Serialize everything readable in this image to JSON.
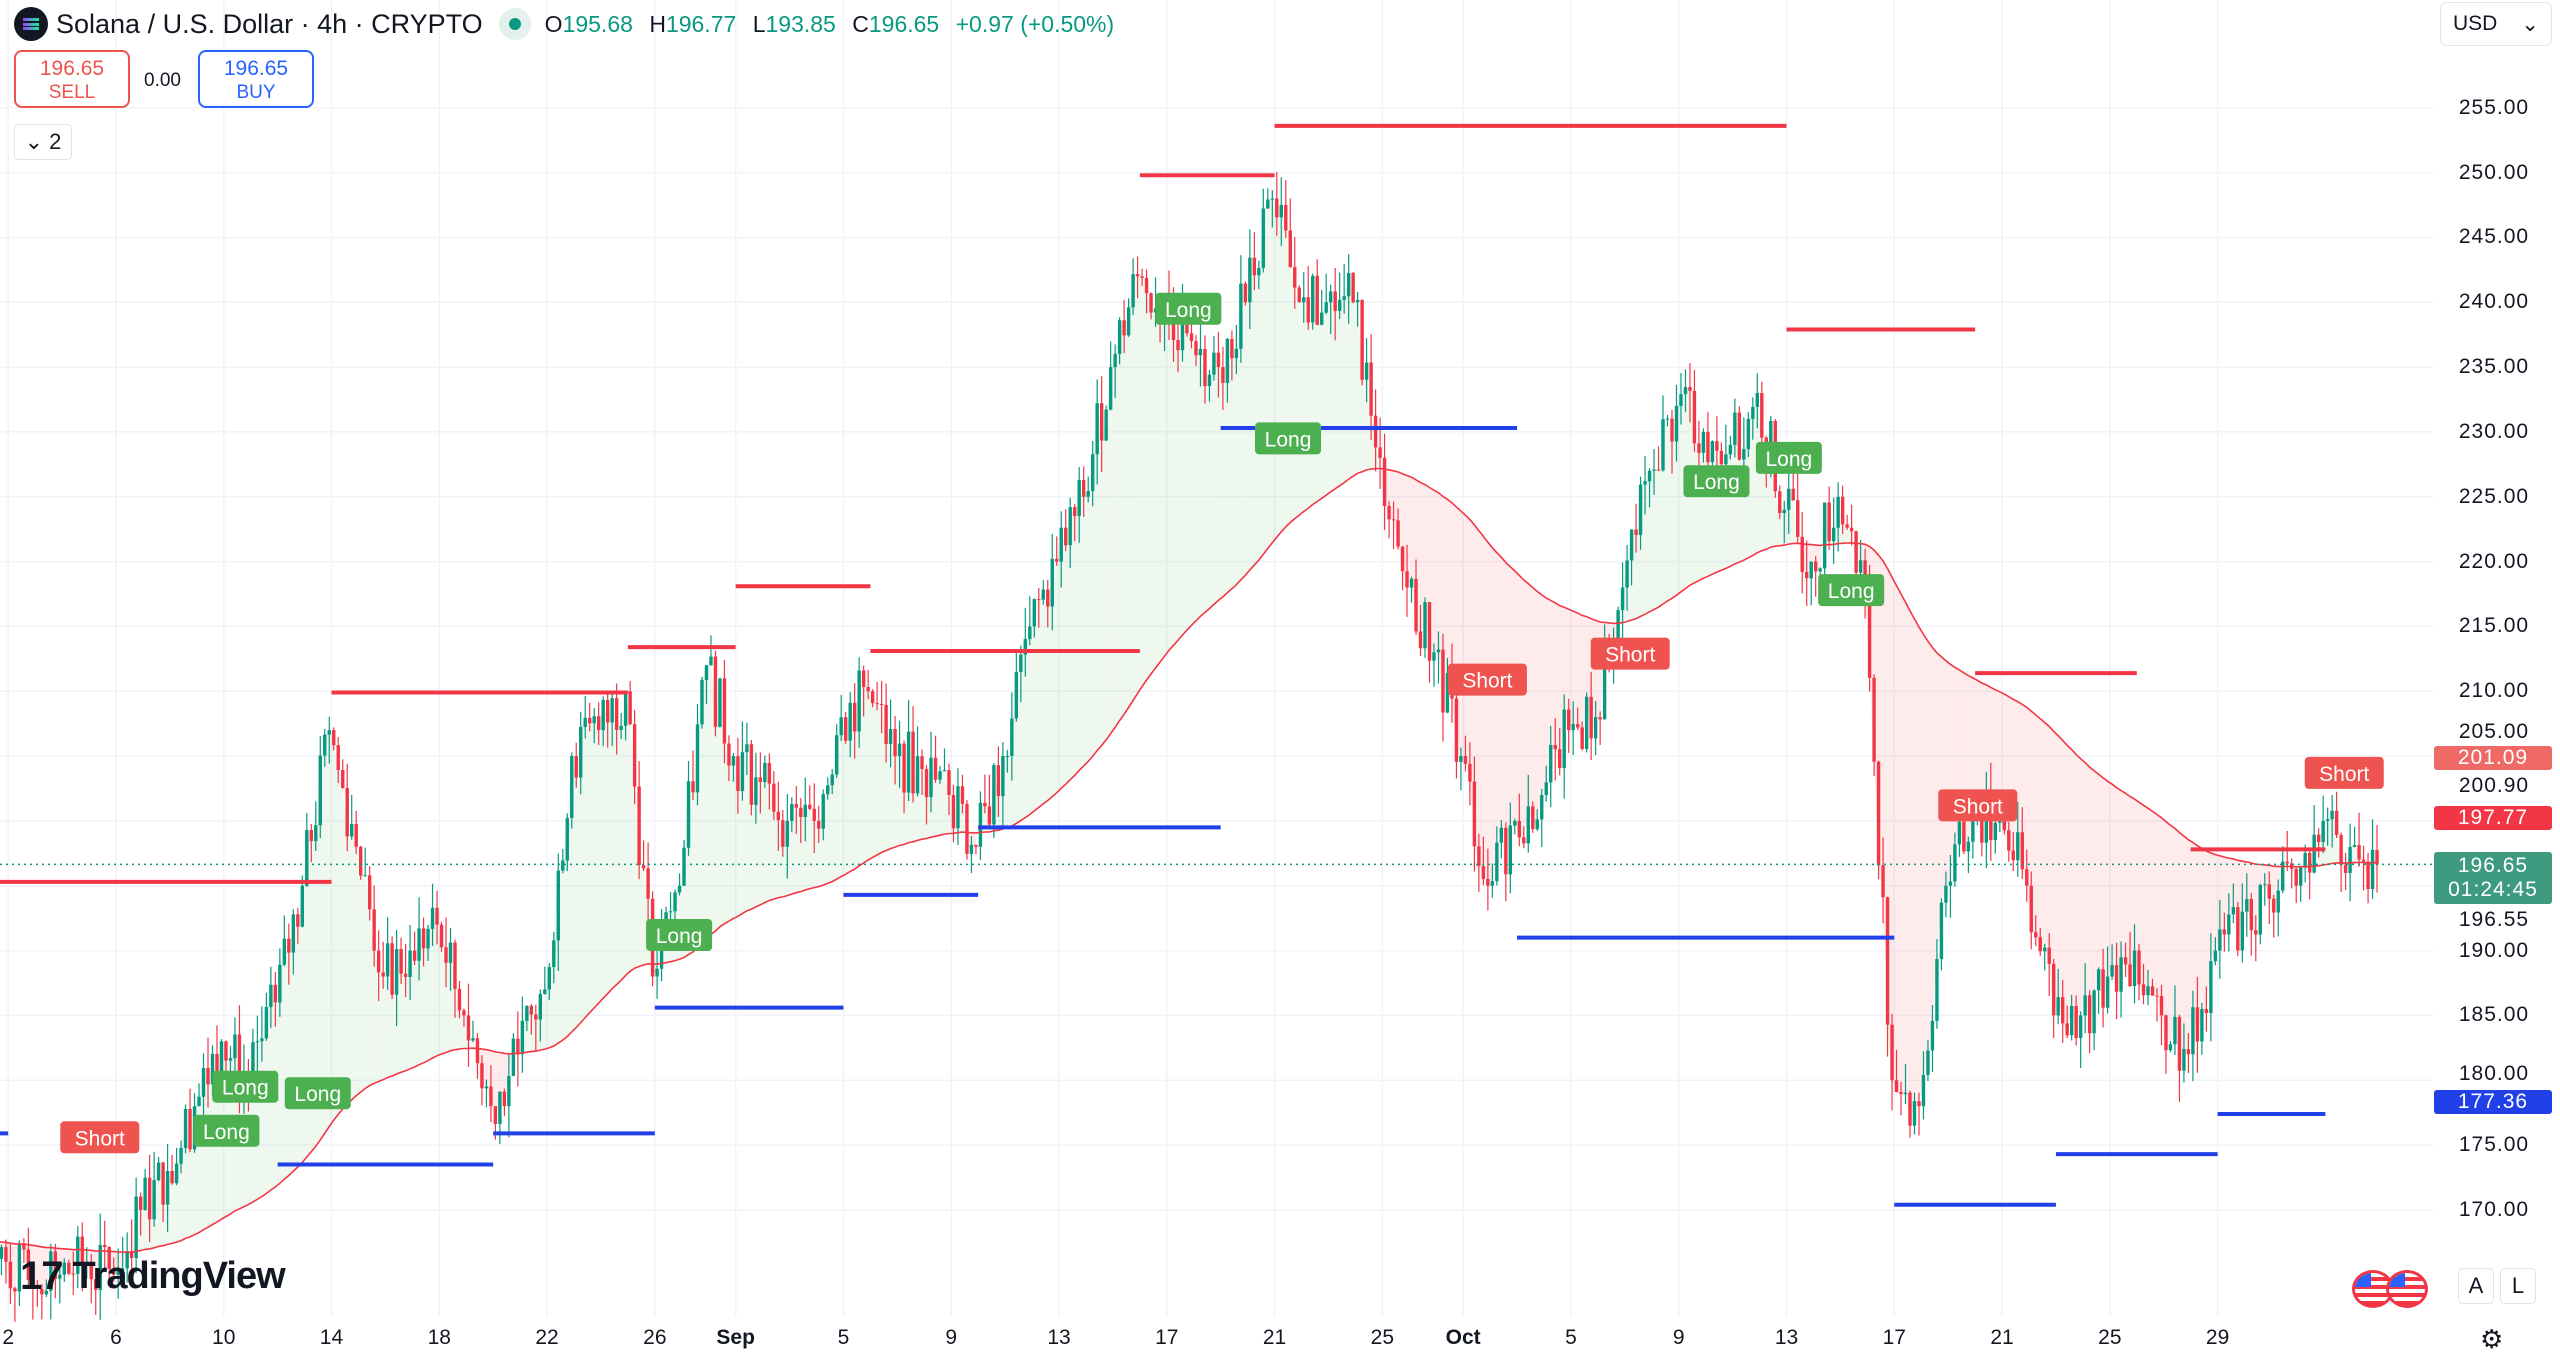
{
  "header": {
    "symbol_title": "Solana / U.S. Dollar · 4h · CRYPTO",
    "ohlc": {
      "o_label": "O",
      "o": "195.68",
      "h_label": "H",
      "h": "196.77",
      "l_label": "L",
      "l": "193.85",
      "c_label": "C",
      "c": "196.65",
      "change": "+0.97 (+0.50%)"
    },
    "status_color": "#089981"
  },
  "trade": {
    "sell_price": "196.65",
    "sell_label": "SELL",
    "spread": "0.00",
    "buy_price": "196.65",
    "buy_label": "BUY"
  },
  "indicators_toggle": {
    "icon": "chevron-down-icon",
    "count": "2"
  },
  "currency_select": {
    "value": "USD"
  },
  "price_axis": {
    "ticks": [
      "255.00",
      "250.00",
      "245.00",
      "240.00",
      "235.00",
      "230.00",
      "225.00",
      "220.00",
      "215.00",
      "210.00",
      "205.00",
      "200.90",
      "196.55",
      "190.00",
      "185.00",
      "180.00",
      "175.00",
      "170.00"
    ],
    "tags": [
      {
        "value": "201.09",
        "color": "#ef6a67"
      },
      {
        "value": "197.77",
        "color": "#f23645"
      },
      {
        "value": "196.65",
        "countdown": "01:24:45",
        "color": "#3f9b80"
      },
      {
        "value": "177.36",
        "color": "#2240e8"
      }
    ]
  },
  "time_axis": [
    "2",
    "6",
    "10",
    "14",
    "18",
    "22",
    "26",
    "Sep",
    "5",
    "9",
    "13",
    "17",
    "21",
    "25",
    "Oct",
    "5",
    "9",
    "13",
    "17",
    "21",
    "25",
    "29"
  ],
  "scale_buttons": {
    "auto": "A",
    "log": "L"
  },
  "branding": {
    "logo_text": "TradingView"
  },
  "colors": {
    "up": "#089981",
    "down": "#f23645",
    "ma": "#f23645",
    "resistance": "#f23645",
    "support": "#2240e8",
    "long_label": "#4caf50",
    "short_label": "#ef5350"
  },
  "chart_data": {
    "type": "candlestick",
    "interval": "4h",
    "start_date": "Aug 1",
    "daily_close": [
      168,
      166,
      164,
      165,
      166,
      165,
      170,
      173,
      178,
      183,
      180,
      186,
      195,
      207,
      198,
      188,
      190,
      192,
      185,
      178,
      182,
      187,
      205,
      207,
      210,
      188,
      195,
      212,
      205,
      203,
      200,
      200,
      208,
      210,
      205,
      204,
      202,
      198,
      205,
      215,
      220,
      225,
      235,
      242,
      240,
      237,
      235,
      240,
      248,
      240,
      240,
      240,
      228,
      218,
      213,
      205,
      195,
      200,
      202,
      207,
      208,
      218,
      227,
      232,
      230,
      229,
      233,
      224,
      220,
      225,
      218,
      180,
      178,
      195,
      200,
      200,
      195,
      185,
      185,
      188,
      190,
      185,
      182,
      190,
      193,
      194,
      195,
      200,
      198,
      196.65
    ],
    "current_price": 196.65,
    "resistance_lines": [
      {
        "price": 195.3,
        "from": "Jul 31",
        "to": "Aug 14"
      },
      {
        "price": 209.9,
        "from": "Aug 14",
        "to": "Aug 25"
      },
      {
        "price": 213.4,
        "from": "Aug 25",
        "to": "Aug 29"
      },
      {
        "price": 218.1,
        "from": "Aug 29",
        "to": "Sep 3"
      },
      {
        "price": 213.1,
        "from": "Sep 3",
        "to": "Sep 13"
      },
      {
        "price": 249.8,
        "from": "Sep 13",
        "to": "Sep 18"
      },
      {
        "price": 253.6,
        "from": "Sep 18",
        "to": "Oct 7"
      },
      {
        "price": 237.9,
        "from": "Oct 7",
        "to": "Oct 14"
      },
      {
        "price": 211.4,
        "from": "Oct 14",
        "to": "Oct 20"
      },
      {
        "price": 197.8,
        "from": "Oct 22",
        "to": "Oct 27"
      }
    ],
    "support_lines": [
      {
        "price": 175.9,
        "from": "Jul 31",
        "to": "Aug 2"
      },
      {
        "price": 173.5,
        "from": "Aug 12",
        "to": "Aug 20"
      },
      {
        "price": 175.9,
        "from": "Aug 20",
        "to": "Aug 26"
      },
      {
        "price": 185.6,
        "from": "Aug 26",
        "to": "Sep 2"
      },
      {
        "price": 194.3,
        "from": "Sep 2",
        "to": "Sep 7"
      },
      {
        "price": 199.5,
        "from": "Sep 7",
        "to": "Sep 16"
      },
      {
        "price": 230.3,
        "from": "Sep 16",
        "to": "Sep 27"
      },
      {
        "price": 191.0,
        "from": "Sep 27",
        "to": "Oct 11"
      },
      {
        "price": 170.4,
        "from": "Oct 11",
        "to": "Oct 17"
      },
      {
        "price": 174.3,
        "from": "Oct 17",
        "to": "Oct 23"
      },
      {
        "price": 177.4,
        "from": "Oct 23",
        "to": "Oct 27"
      }
    ],
    "signals": [
      {
        "text": "Short",
        "date": "Aug 5.4",
        "price": 175.6
      },
      {
        "text": "Long",
        "date": "Aug 10.1",
        "price": 176.1
      },
      {
        "text": "Long",
        "date": "Aug 10.8",
        "price": 179.5
      },
      {
        "text": "Long",
        "date": "Aug 12.6",
        "price": 179.0
      },
      {
        "text": "Long",
        "date": "Aug 26.9",
        "price": 191.2
      },
      {
        "text": "Long",
        "date": "Sep 14.8",
        "price": 239.5
      },
      {
        "text": "Long",
        "date": "Sep 18.5",
        "price": 229.5
      },
      {
        "text": "Short",
        "date": "Sep 25.9",
        "price": 210.9
      },
      {
        "text": "Short",
        "date": "Oct 1.2",
        "price": 212.9
      },
      {
        "text": "Long",
        "date": "Oct 4.4",
        "price": 226.2
      },
      {
        "text": "Long",
        "date": "Oct 5.9",
        "price": 228.0
      },
      {
        "text": "Long",
        "date": "Oct 9.4",
        "price": 217.8
      },
      {
        "text": "Short",
        "date": "Oct 14.1",
        "price": 201.2
      },
      {
        "text": "Short",
        "date": "Oct 27.7",
        "price": 203.7
      }
    ]
  }
}
